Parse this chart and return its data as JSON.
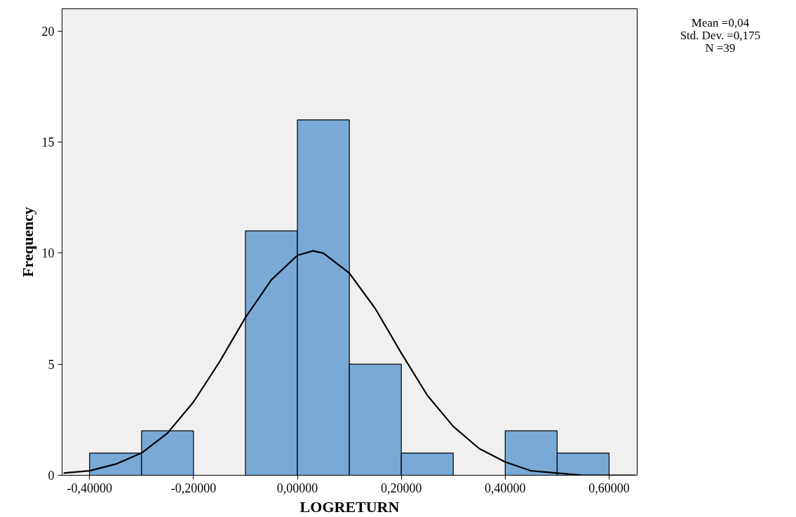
{
  "chart_data": {
    "type": "histogram",
    "xlabel": "LOGRETURN",
    "ylabel": "Frequency",
    "bins": [
      -0.4,
      -0.3,
      -0.2,
      -0.1,
      0.0,
      0.1,
      0.2,
      0.3,
      0.4,
      0.5,
      0.6
    ],
    "values": [
      1,
      2,
      0,
      11,
      16,
      5,
      1,
      0,
      2,
      1
    ],
    "color": "#7aa9d6",
    "series": [
      {
        "type": "line",
        "color": "#000000",
        "x": [
          -0.45,
          -0.4,
          -0.35,
          -0.3,
          -0.25,
          -0.2,
          -0.15,
          -0.1,
          -0.05,
          0.0,
          0.03,
          0.05,
          0.1,
          0.15,
          0.2,
          0.25,
          0.3,
          0.35,
          0.4,
          0.45,
          0.5,
          0.55,
          0.6,
          0.65
        ],
        "values": [
          0.1,
          0.2,
          0.5,
          1.0,
          1.9,
          3.3,
          5.1,
          7.1,
          8.8,
          9.9,
          10.1,
          10.0,
          9.1,
          7.5,
          5.5,
          3.6,
          2.2,
          1.2,
          0.6,
          0.2,
          0.1,
          0.0,
          0.0,
          0.0
        ]
      }
    ],
    "xlim": [
      -0.453,
      0.654
    ],
    "ylim": [
      0,
      21
    ],
    "xticks": [
      {
        "value": -0.4,
        "label": "-0,40000"
      },
      {
        "value": -0.2,
        "label": "-0,20000"
      },
      {
        "value": 0.0,
        "label": "0,00000"
      },
      {
        "value": 0.2,
        "label": "0,20000"
      },
      {
        "value": 0.4,
        "label": "0,40000"
      },
      {
        "value": 0.6,
        "label": "0,60000"
      }
    ],
    "yticks": [
      0,
      5,
      10,
      15,
      20
    ],
    "grid": false,
    "annotations": [
      "Mean =0,04",
      "Std. Dev. =0,175",
      "N =39"
    ]
  }
}
